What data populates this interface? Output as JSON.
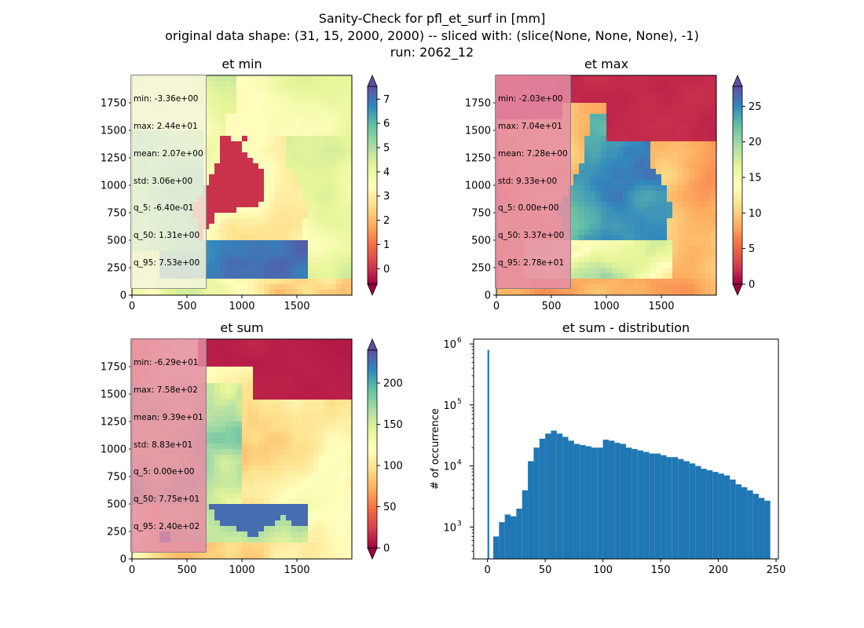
{
  "figure": {
    "title_lines": [
      "Sanity-Check for pfl_et_surf in [mm]",
      "original data shape: (31, 15, 2000, 2000) -- sliced with: (slice(None, None, None), -1)",
      "run: 2062_12"
    ]
  },
  "colors": {
    "spectral": [
      "#9e0142",
      "#d53e4f",
      "#f46d43",
      "#fdae61",
      "#fee08b",
      "#ffffbf",
      "#e6f598",
      "#abdda4",
      "#66c2a5",
      "#3288bd",
      "#5e4fa2"
    ],
    "hist_bar": "#1f77b4",
    "box_light": "#f5f5dc",
    "box_pink": "#e48ca6"
  },
  "panels": {
    "et_min": {
      "title": "et min",
      "stats": [
        "min: -3.36e+00",
        "max: 2.44e+01",
        "mean: 2.07e+00",
        "std: 3.06e+00",
        "q_5: -6.40e-01",
        "q_50: 1.31e+00",
        "q_95: 7.53e+00"
      ],
      "x_ticks": [
        "0",
        "500",
        "1000",
        "1500"
      ],
      "y_ticks": [
        "0",
        "250",
        "500",
        "750",
        "1000",
        "1250",
        "1500",
        "1750"
      ],
      "colorbar": {
        "vmin": -0.64,
        "vmax": 7.53,
        "ticks": [
          "0",
          "1",
          "2",
          "3",
          "4",
          "5",
          "6",
          "7"
        ]
      }
    },
    "et_max": {
      "title": "et max",
      "stats": [
        "min: -2.03e+00",
        "max: 7.04e+01",
        "mean: 7.28e+00",
        "std: 9.33e+00",
        "q_5: 0.00e+00",
        "q_50: 3.37e+00",
        "q_95: 2.78e+01"
      ],
      "x_ticks": [
        "0",
        "500",
        "1000",
        "1500"
      ],
      "y_ticks": [
        "0",
        "250",
        "500",
        "750",
        "1000",
        "1250",
        "1500",
        "1750"
      ],
      "colorbar": {
        "vmin": 0.0,
        "vmax": 27.8,
        "ticks": [
          "0",
          "5",
          "10",
          "15",
          "20",
          "25"
        ]
      }
    },
    "et_sum": {
      "title": "et sum",
      "stats": [
        "min: -6.29e+01",
        "max: 7.58e+02",
        "mean: 9.39e+01",
        "std: 8.83e+01",
        "q_5: 0.00e+00",
        "q_50: 7.75e+01",
        "q_95: 2.40e+02"
      ],
      "x_ticks": [
        "0",
        "500",
        "1000",
        "1500"
      ],
      "y_ticks": [
        "0",
        "250",
        "500",
        "750",
        "1000",
        "1250",
        "1500",
        "1750"
      ],
      "colorbar": {
        "vmin": 0.0,
        "vmax": 240.0,
        "ticks": [
          "0",
          "50",
          "100",
          "150",
          "200"
        ]
      }
    },
    "hist": {
      "title": "et sum - distribution",
      "ylabel": "# of occurrence",
      "x_ticks": [
        "0",
        "50",
        "100",
        "150",
        "200",
        "250"
      ]
    }
  },
  "chart_data": [
    {
      "type": "heatmap",
      "title": "et min",
      "xlim": [
        0,
        2000
      ],
      "ylim": [
        0,
        2000
      ],
      "colorbar_range": [
        -0.64,
        7.53
      ],
      "stats": {
        "min": -3.36,
        "max": 24.4,
        "mean": 2.07,
        "std": 3.06,
        "q_5": -0.64,
        "q_50": 1.31,
        "q_95": 7.53
      }
    },
    {
      "type": "heatmap",
      "title": "et max",
      "xlim": [
        0,
        2000
      ],
      "ylim": [
        0,
        2000
      ],
      "colorbar_range": [
        0.0,
        27.8
      ],
      "stats": {
        "min": -2.03,
        "max": 70.4,
        "mean": 7.28,
        "std": 9.33,
        "q_5": 0.0,
        "q_50": 3.37,
        "q_95": 27.8
      }
    },
    {
      "type": "heatmap",
      "title": "et sum",
      "xlim": [
        0,
        2000
      ],
      "ylim": [
        0,
        2000
      ],
      "colorbar_range": [
        0.0,
        240.0
      ],
      "stats": {
        "min": -62.9,
        "max": 758.0,
        "mean": 93.9,
        "std": 88.3,
        "q_5": 0.0,
        "q_50": 77.5,
        "q_95": 240.0
      }
    },
    {
      "type": "bar",
      "title": "et sum - distribution",
      "ylabel": "# of occurrence",
      "xlim": [
        -12,
        252
      ],
      "ylim": [
        300,
        1200000
      ],
      "yscale": "log",
      "x": [
        0,
        5,
        10,
        15,
        20,
        25,
        30,
        35,
        40,
        45,
        50,
        55,
        60,
        65,
        70,
        75,
        80,
        85,
        90,
        95,
        100,
        105,
        110,
        115,
        120,
        125,
        130,
        135,
        140,
        145,
        150,
        155,
        160,
        165,
        170,
        175,
        180,
        185,
        190,
        195,
        200,
        205,
        210,
        215,
        220,
        225,
        230,
        235,
        240
      ],
      "values": [
        800000,
        700,
        1200,
        1600,
        1500,
        2000,
        4000,
        12000,
        20000,
        28000,
        34000,
        38000,
        34000,
        30000,
        26000,
        23000,
        22000,
        21000,
        20000,
        20000,
        27000,
        26000,
        24000,
        23000,
        20000,
        19000,
        18000,
        17000,
        16000,
        16000,
        15000,
        14000,
        14000,
        13000,
        12000,
        11000,
        10000,
        9000,
        8500,
        8000,
        7500,
        7000,
        6000,
        5000,
        4500,
        4000,
        3500,
        3000,
        2700
      ]
    }
  ]
}
